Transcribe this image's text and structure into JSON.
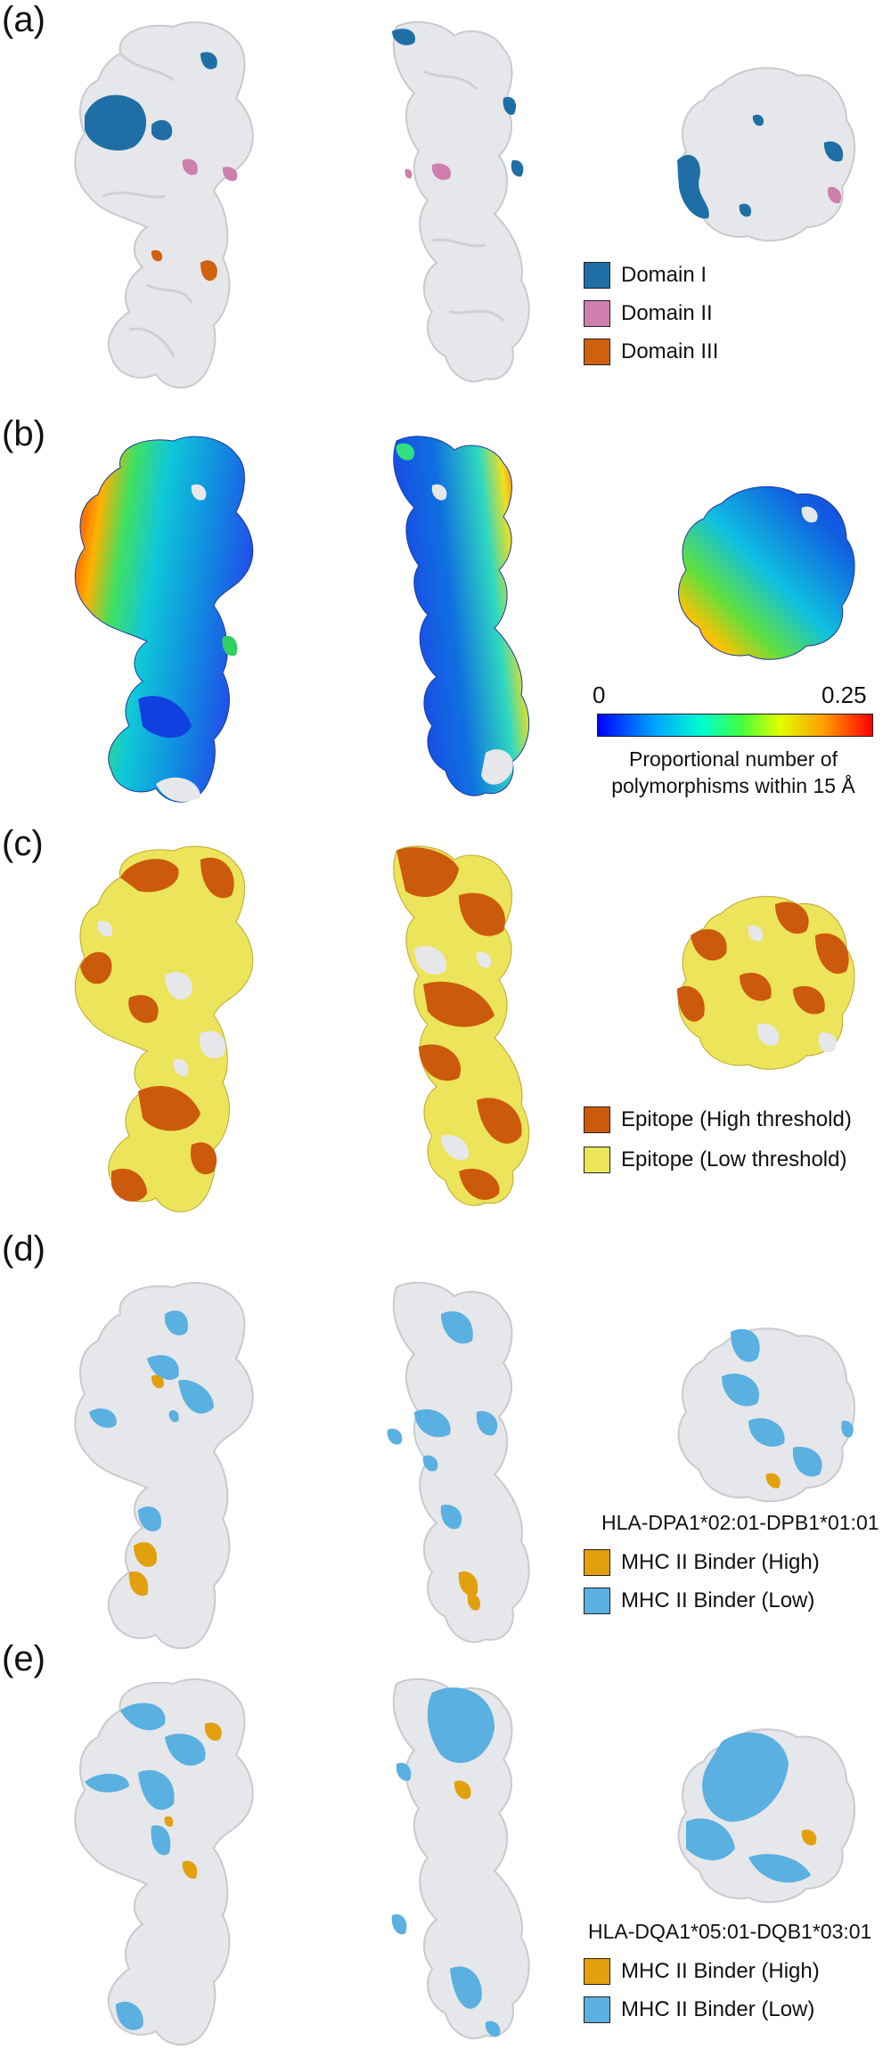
{
  "panels": [
    {
      "label": "(a)",
      "legend": [
        {
          "text": "Domain I",
          "color": "#1f6fa6"
        },
        {
          "text": "Domain II",
          "color": "#cf7fae"
        },
        {
          "text": "Domain III",
          "color": "#d0610f"
        }
      ]
    },
    {
      "label": "(b)",
      "colorbar": {
        "min_label": "0",
        "max_label": "0.25",
        "caption_line1": "Proportional number of",
        "caption_line2": "polymorphisms within 15 Å"
      }
    },
    {
      "label": "(c)",
      "legend": [
        {
          "text": "Epitope (High threshold)",
          "color": "#cc5a0c"
        },
        {
          "text": "Epitope (Low threshold)",
          "color": "#ece45a"
        }
      ]
    },
    {
      "label": "(d)",
      "allele": "HLA-DPA1*02:01-DPB1*01:01",
      "legend": [
        {
          "text": "MHC II Binder (High)",
          "color": "#e2a00e"
        },
        {
          "text": "MHC II Binder (Low)",
          "color": "#5ab0e0"
        }
      ]
    },
    {
      "label": "(e)",
      "allele": "HLA-DQA1*05:01-DQB1*03:01",
      "legend": [
        {
          "text": "MHC II Binder (High)",
          "color": "#e2a00e"
        },
        {
          "text": "MHC II Binder (Low)",
          "color": "#5ab0e0"
        }
      ]
    }
  ],
  "surface_color": "#e6e7ea"
}
